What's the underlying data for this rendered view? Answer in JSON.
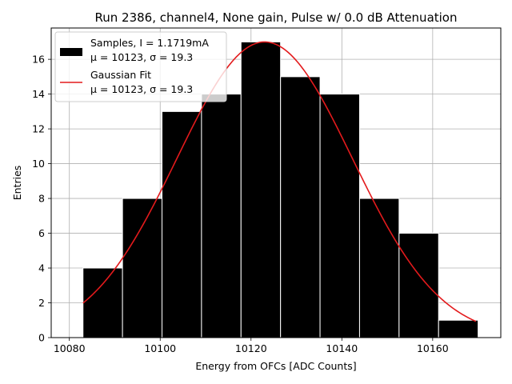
{
  "chart_data": {
    "type": "bar",
    "title": "Run 2386, channel4, None gain, Pulse w/ 0.0 dB Attenuation",
    "xlabel": "Energy from OFCs [ADC Counts]",
    "ylabel": "Entries",
    "xlim": [
      10076,
      10175
    ],
    "ylim": [
      0,
      17.8
    ],
    "xticks": [
      10080,
      10100,
      10120,
      10140,
      10160
    ],
    "yticks": [
      0,
      2,
      4,
      6,
      8,
      10,
      12,
      14,
      16
    ],
    "grid": true,
    "legend_position": "top-left",
    "histogram": {
      "name": "Samples, I = 1.1719mA",
      "name_line2": "μ = 10123, σ = 19.3",
      "color": "#000000",
      "edge_color": "#ffffff",
      "bins": [
        {
          "x0": 10083.0,
          "x1": 10091.7,
          "count": 4
        },
        {
          "x0": 10091.7,
          "x1": 10100.4,
          "count": 8
        },
        {
          "x0": 10100.4,
          "x1": 10109.1,
          "count": 13
        },
        {
          "x0": 10109.1,
          "x1": 10117.8,
          "count": 14
        },
        {
          "x0": 10117.8,
          "x1": 10126.5,
          "count": 17
        },
        {
          "x0": 10126.5,
          "x1": 10135.2,
          "count": 15
        },
        {
          "x0": 10135.2,
          "x1": 10143.9,
          "count": 14
        },
        {
          "x0": 10143.9,
          "x1": 10152.6,
          "count": 8
        },
        {
          "x0": 10152.6,
          "x1": 10161.3,
          "count": 6
        },
        {
          "x0": 10161.3,
          "x1": 10170.0,
          "count": 1
        }
      ]
    },
    "fit": {
      "name": "Gaussian Fit",
      "name_line2": "μ = 10123, σ = 19.3",
      "color": "#e31a1c",
      "amplitude": 17.0,
      "mu": 10123,
      "sigma": 19.3,
      "x_range": [
        10083,
        10169.5
      ]
    }
  }
}
